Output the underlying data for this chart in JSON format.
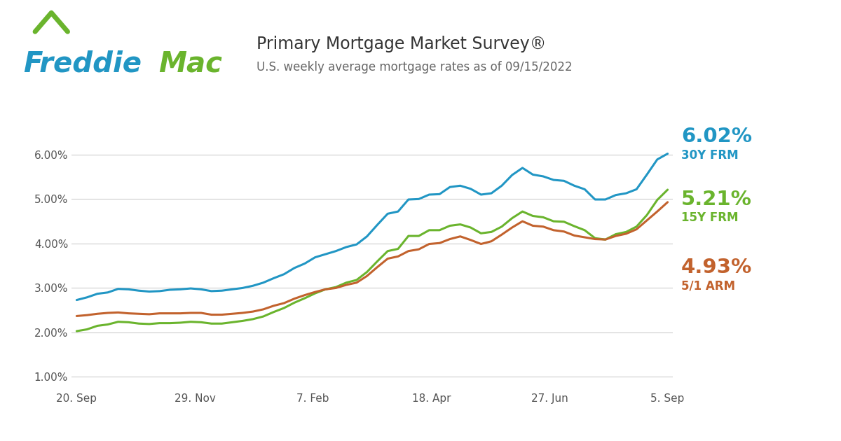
{
  "title": "Primary Mortgage Market Survey®",
  "subtitle": "U.S. weekly average mortgage rates as of 09/15/2022",
  "title_color": "#333333",
  "subtitle_color": "#666666",
  "bg_color": "#ffffff",
  "plot_bg_color": "#ffffff",
  "grid_color": "#cccccc",
  "x_tick_labels": [
    "20. Sep",
    "29. Nov",
    "7. Feb",
    "18. Apr",
    "27. Jun",
    "5. Sep"
  ],
  "y_tick_labels": [
    "1.00%",
    "2.00%",
    "3.00%",
    "4.00%",
    "5.00%",
    "6.00%"
  ],
  "y_ticks": [
    1.0,
    2.0,
    3.0,
    4.0,
    5.0,
    6.0
  ],
  "ylim": [
    0.7,
    6.6
  ],
  "freddie_blue": "#2196C4",
  "freddie_green": "#6AB42D",
  "label_30y_value": "6.02%",
  "label_30y_name": "30Y FRM",
  "label_30y_color": "#2196C4",
  "label_15y_value": "5.21%",
  "label_15y_name": "15Y FRM",
  "label_15y_color": "#6AB42D",
  "label_5y_value": "4.93%",
  "label_5y_name": "5/1 ARM",
  "label_5y_color": "#C2622D",
  "line_30y_color": "#2196C4",
  "line_15y_color": "#6AB42D",
  "line_arm_color": "#C2622D",
  "line_width": 2.2,
  "y30_data": [
    2.73,
    2.79,
    2.87,
    2.9,
    2.98,
    2.97,
    2.94,
    2.92,
    2.93,
    2.96,
    2.97,
    2.99,
    2.97,
    2.93,
    2.94,
    2.97,
    3.0,
    3.05,
    3.12,
    3.22,
    3.31,
    3.45,
    3.55,
    3.69,
    3.76,
    3.83,
    3.92,
    3.98,
    4.16,
    4.42,
    4.67,
    4.72,
    4.99,
    5.0,
    5.1,
    5.11,
    5.27,
    5.3,
    5.23,
    5.1,
    5.13,
    5.3,
    5.54,
    5.7,
    5.55,
    5.51,
    5.43,
    5.41,
    5.3,
    5.22,
    4.99,
    4.99,
    5.09,
    5.13,
    5.22,
    5.55,
    5.89,
    6.02
  ],
  "y15_data": [
    2.03,
    2.07,
    2.15,
    2.18,
    2.24,
    2.23,
    2.2,
    2.19,
    2.21,
    2.21,
    2.22,
    2.24,
    2.23,
    2.2,
    2.2,
    2.23,
    2.26,
    2.3,
    2.36,
    2.46,
    2.55,
    2.67,
    2.77,
    2.88,
    2.97,
    3.02,
    3.12,
    3.18,
    3.36,
    3.6,
    3.83,
    3.88,
    4.17,
    4.17,
    4.3,
    4.3,
    4.4,
    4.43,
    4.36,
    4.23,
    4.26,
    4.38,
    4.57,
    4.72,
    4.62,
    4.59,
    4.5,
    4.49,
    4.39,
    4.3,
    4.12,
    4.09,
    4.21,
    4.26,
    4.38,
    4.64,
    4.98,
    5.21
  ],
  "yarm_data": [
    2.37,
    2.39,
    2.42,
    2.44,
    2.45,
    2.43,
    2.42,
    2.41,
    2.43,
    2.43,
    2.43,
    2.44,
    2.44,
    2.4,
    2.4,
    2.42,
    2.44,
    2.47,
    2.52,
    2.6,
    2.66,
    2.76,
    2.84,
    2.91,
    2.97,
    3.0,
    3.07,
    3.12,
    3.27,
    3.47,
    3.66,
    3.71,
    3.83,
    3.87,
    3.99,
    4.01,
    4.1,
    4.16,
    4.08,
    3.99,
    4.05,
    4.2,
    4.36,
    4.5,
    4.4,
    4.38,
    4.3,
    4.27,
    4.18,
    4.14,
    4.1,
    4.09,
    4.17,
    4.22,
    4.32,
    4.52,
    4.72,
    4.93
  ]
}
